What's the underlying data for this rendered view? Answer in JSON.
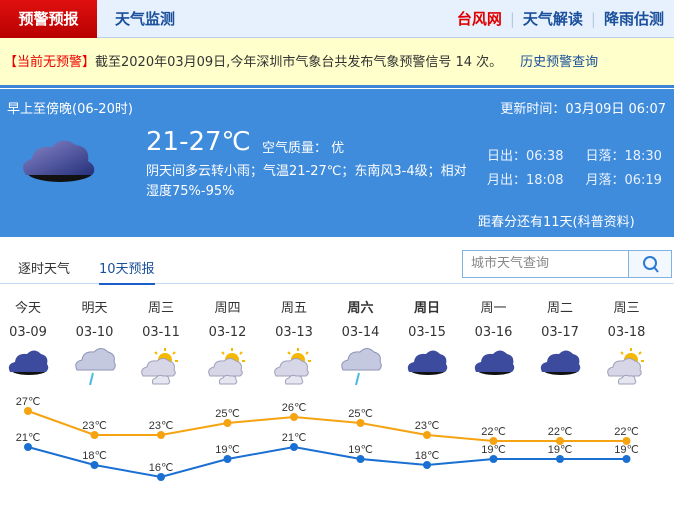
{
  "topbar": {
    "active_tab": "预警预报",
    "tab2": "天气监测",
    "links": [
      "台风网",
      "天气解读",
      "降雨估测"
    ],
    "link_colors": [
      "#e00000",
      "#1a4f9c",
      "#1a4f9c"
    ]
  },
  "warning": {
    "status": "【当前无预警】",
    "text": "截至2020年03月09日,今年深圳市气象台共发布气象预警信号 14 次。",
    "history_link": "历史预警查询"
  },
  "now": {
    "period": "早上至傍晚(06-20时)",
    "updated": "更新时间：03月09日 06:07",
    "icon": "cloudy-icon",
    "temp": "21-27℃",
    "air_quality": "空气质量： 优",
    "desc": "阴天间多云转小雨；气温21-27℃；东南风3-4级；相对湿度75%-95%",
    "sunrise": "日出：06:38",
    "sunset": "日落：18:30",
    "moonrise": "月出：18:08",
    "moonset": "月落：06:19",
    "spring": "距春分还有11天(科普资料)"
  },
  "tabs": [
    "逐时天气",
    "10天预报"
  ],
  "search": {
    "placeholder": "城市天气查询"
  },
  "forecast": [
    {
      "day": "今天",
      "date": "03-09",
      "icon": "cloudy",
      "bold": false
    },
    {
      "day": "明天",
      "date": "03-10",
      "icon": "rain",
      "bold": false
    },
    {
      "day": "周三",
      "date": "03-11",
      "icon": "partly",
      "bold": false
    },
    {
      "day": "周四",
      "date": "03-12",
      "icon": "partly",
      "bold": false
    },
    {
      "day": "周五",
      "date": "03-13",
      "icon": "partly",
      "bold": false
    },
    {
      "day": "周六",
      "date": "03-14",
      "icon": "rain",
      "bold": true
    },
    {
      "day": "周日",
      "date": "03-15",
      "icon": "cloudy",
      "bold": true
    },
    {
      "day": "周一",
      "date": "03-16",
      "icon": "cloudy",
      "bold": false
    },
    {
      "day": "周二",
      "date": "03-17",
      "icon": "cloudy",
      "bold": false
    },
    {
      "day": "周三",
      "date": "03-18",
      "icon": "partly",
      "bold": false
    }
  ],
  "chart_data": {
    "type": "line",
    "categories": [
      "03-09",
      "03-10",
      "03-11",
      "03-12",
      "03-13",
      "03-14",
      "03-15",
      "03-16",
      "03-17",
      "03-18"
    ],
    "series": [
      {
        "values": [
          27,
          23,
          23,
          25,
          26,
          25,
          23,
          22,
          22,
          22
        ],
        "color": "#f5a310"
      },
      {
        "values": [
          21,
          18,
          16,
          19,
          21,
          19,
          18,
          19,
          19,
          19
        ],
        "color": "#1a6fd3"
      }
    ],
    "unit": "℃"
  }
}
